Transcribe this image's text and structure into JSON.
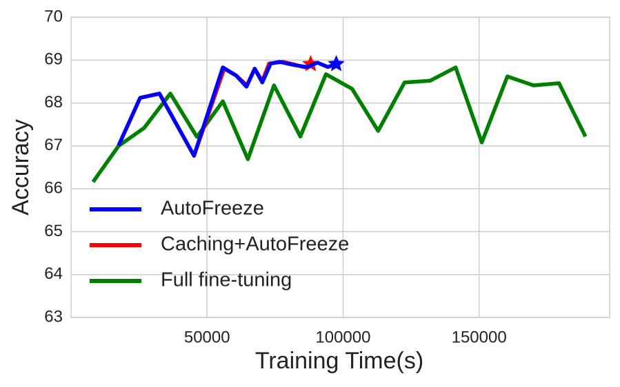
{
  "chart_data": {
    "type": "line",
    "xlabel": "Training Time(s)",
    "ylabel": "Accuracy",
    "xlim": [
      0,
      198000
    ],
    "ylim": [
      63,
      70
    ],
    "xticks": [
      50000,
      100000,
      150000
    ],
    "yticks": [
      63,
      64,
      65,
      66,
      67,
      68,
      69,
      70
    ],
    "grid": true,
    "legend": "lower left",
    "series": [
      {
        "name": "AutoFreeze",
        "color": "#0000ff",
        "end_marker": "star",
        "x": [
          17500,
          25400,
          32500,
          45200,
          55800,
          60700,
          64500,
          67500,
          70300,
          73400,
          76600,
          82500,
          86800,
          90600,
          94400,
          97500
        ],
        "values": [
          67.01,
          68.12,
          68.22,
          66.77,
          68.83,
          68.64,
          68.38,
          68.8,
          68.48,
          68.92,
          68.96,
          68.88,
          68.84,
          68.94,
          68.84,
          68.91
        ]
      },
      {
        "name": "Caching+AutoFreeze",
        "color": "#ff0000",
        "end_marker": "star",
        "x": [
          17500,
          25400,
          32500,
          45200,
          56300,
          60700,
          64700,
          67500,
          70300,
          72800,
          77900,
          82500,
          86000,
          88100
        ],
        "values": [
          67.01,
          68.12,
          68.22,
          66.77,
          68.8,
          68.64,
          68.41,
          68.8,
          68.51,
          68.92,
          68.96,
          68.89,
          68.83,
          68.91
        ]
      },
      {
        "name": "Full fine-tuning",
        "color": "#008000",
        "x": [
          8100,
          17500,
          26900,
          36500,
          46300,
          55800,
          65000,
          74600,
          84300,
          93700,
          103300,
          112900,
          122600,
          132000,
          141400,
          151000,
          160400,
          170000,
          179400,
          189100
        ],
        "values": [
          66.16,
          67.0,
          67.42,
          68.22,
          67.21,
          68.04,
          66.69,
          68.41,
          67.22,
          68.67,
          68.33,
          67.35,
          68.48,
          68.52,
          68.83,
          67.08,
          68.62,
          68.41,
          68.46,
          67.22
        ]
      }
    ]
  }
}
